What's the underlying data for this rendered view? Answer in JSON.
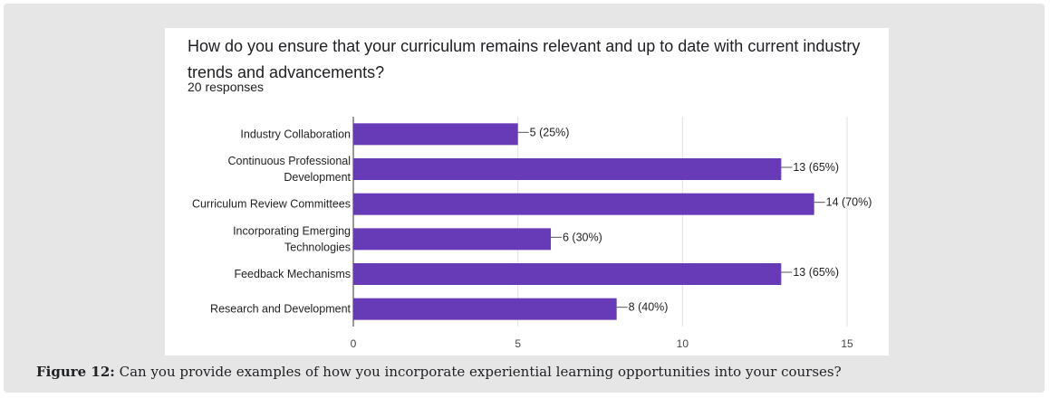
{
  "chart_data": {
    "type": "bar",
    "orientation": "horizontal",
    "title": "How do you ensure that your curriculum remains relevant and up to date with current industry trends and advancements?",
    "subtitle": "20 responses",
    "categories": [
      [
        "Industry Collaboration"
      ],
      [
        "Continuous Professional",
        "Development"
      ],
      [
        "Curriculum Review Committees"
      ],
      [
        "Incorporating Emerging",
        "Technologies"
      ],
      [
        "Feedback Mechanisms"
      ],
      [
        "Research and Development"
      ]
    ],
    "values": [
      5,
      13,
      14,
      6,
      13,
      8
    ],
    "data_labels": [
      "5 (25%)",
      "13 (65%)",
      "14 (70%)",
      "6 (30%)",
      "13 (65%)",
      "8 (40%)"
    ],
    "xlim": [
      0,
      15
    ],
    "xticks": [
      0,
      5,
      10,
      15
    ],
    "grid": true,
    "bar_color": "#673ab7"
  },
  "caption": {
    "label": "Figure 12:",
    "text": " Can you provide examples of how you incorporate experiential learning opportunities into your courses?"
  }
}
